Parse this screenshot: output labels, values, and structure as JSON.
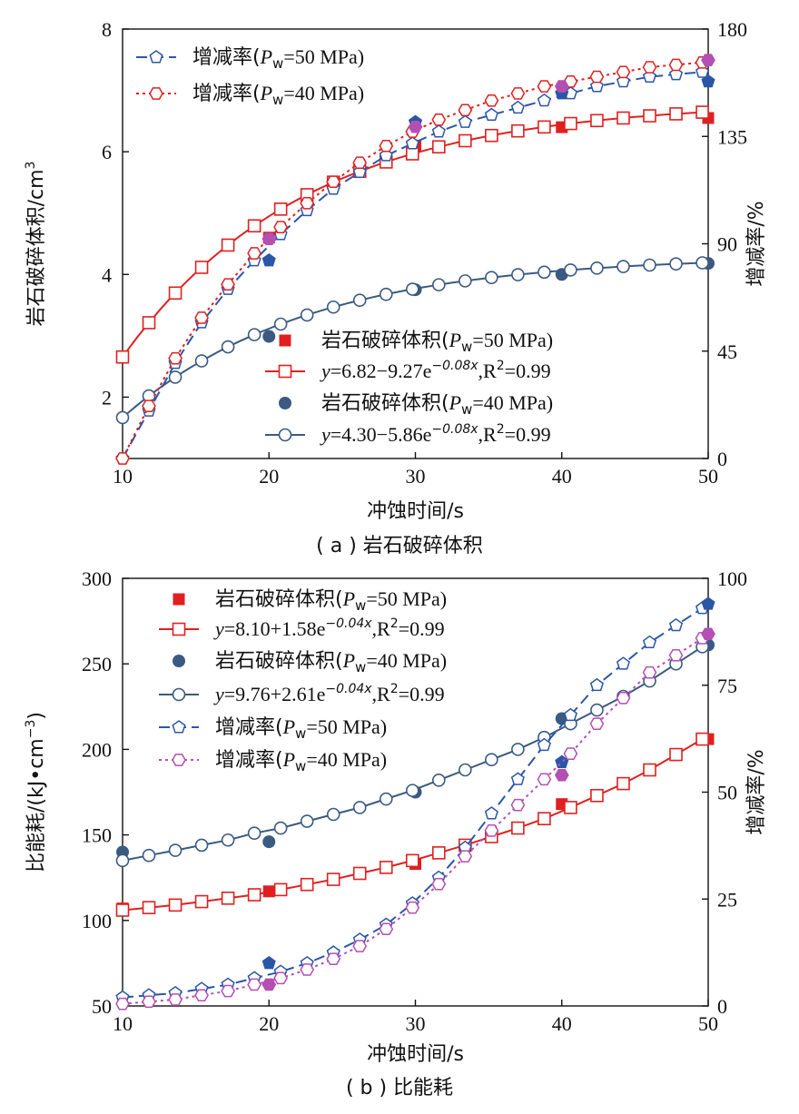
{
  "colors": {
    "red": "#e02020",
    "blue_dark": "#3a5a82",
    "blue": "#2a56a8",
    "purple": "#b44fb4"
  },
  "chart_data": [
    {
      "id": "a",
      "type": "line",
      "caption": "( a ) 岩石破碎体积",
      "xlabel": "冲蚀时间/s",
      "ylabel": "岩石破碎体积/cm",
      "ylabel_sup": "3",
      "ylabel_right": "增减率/%",
      "xlim": [
        10,
        50
      ],
      "ylim": [
        1,
        8
      ],
      "ylim_right": [
        0,
        180
      ],
      "xticks": [
        10,
        20,
        30,
        40,
        50
      ],
      "yticks": [
        2,
        4,
        6,
        8
      ],
      "yticks_right": [
        0,
        45,
        90,
        135,
        180
      ],
      "series": [
        {
          "name": "岩石破碎体积(P_w=50 MPa)",
          "kind": "points",
          "axis": "left",
          "marker": "square-filled",
          "color": "#e02020",
          "x": [
            20,
            30,
            40,
            50
          ],
          "y": [
            4.6,
            6.1,
            6.4,
            6.55
          ]
        },
        {
          "name": "y=6.82−9.27e^(−0.08x),R^2=0.99",
          "kind": "fit",
          "axis": "left",
          "marker": "square-open",
          "color": "#e02020",
          "dash": "solid",
          "formula": {
            "a": 6.82,
            "b": -9.27,
            "k": -0.08
          }
        },
        {
          "name": "岩石破碎体积(P_w=40 MPa)",
          "kind": "points",
          "axis": "left",
          "marker": "circle-filled",
          "color": "#3a5a82",
          "x": [
            20,
            30,
            40,
            50
          ],
          "y": [
            2.99,
            3.75,
            4.0,
            4.18
          ]
        },
        {
          "name": "y=4.30−5.86e^(−0.08x),R^2=0.99",
          "kind": "fit",
          "axis": "left",
          "marker": "circle-open",
          "color": "#3a5a82",
          "dash": "solid",
          "formula": {
            "a": 4.3,
            "b": -5.86,
            "k": -0.08
          }
        },
        {
          "name": "增减率(P_w=50 MPa)",
          "kind": "rate",
          "axis": "right",
          "marker": "pentagon-open",
          "color": "#2a56a8",
          "dash": "12,6",
          "x": [
            10,
            11.8,
            13.6,
            15.4,
            17.2,
            19,
            20.8,
            22.6,
            24.4,
            26.2,
            28,
            29.8,
            31.6,
            33.4,
            35.2,
            37,
            38.8,
            40.6,
            42.4,
            44.2,
            46,
            47.8,
            49.6
          ],
          "y": [
            0,
            20,
            40,
            57,
            71,
            83,
            94,
            104,
            113,
            120,
            127,
            132,
            137,
            141,
            144,
            147,
            150,
            153,
            156,
            158,
            160,
            161,
            162
          ],
          "fx": [
            20,
            30,
            40,
            50
          ],
          "fy": [
            83,
            141,
            153,
            158
          ]
        },
        {
          "name": "增减率(P_w=40 MPa)",
          "kind": "rate",
          "axis": "right",
          "marker": "hexagon-open",
          "color": "#e02020",
          "dash": "3,4",
          "x": [
            10,
            11.8,
            13.6,
            15.4,
            17.2,
            19,
            20.8,
            22.6,
            24.4,
            26.2,
            28,
            29.8,
            31.6,
            33.4,
            35.2,
            37,
            38.8,
            40.6,
            42.4,
            44.2,
            46,
            47.8,
            49.6
          ],
          "y": [
            0,
            22,
            42,
            59,
            73,
            86,
            97,
            107,
            116,
            124,
            131,
            137,
            142,
            146,
            150,
            153,
            156,
            158,
            160,
            162,
            164,
            165,
            166
          ],
          "fx": [
            20,
            30,
            40,
            50
          ],
          "fy": [
            92,
            139,
            156,
            167
          ]
        }
      ],
      "legend_top": {
        "entries": [
          {
            "label": "增减率(",
            "sym": "P",
            "sub": "w",
            "tail": "=50 MPa)"
          },
          {
            "label": "增减率(",
            "sym": "P",
            "sub": "w",
            "tail": "=40 MPa)"
          }
        ]
      },
      "legend_bottom": {
        "entries": [
          {
            "label": "岩石破碎体积(",
            "sym": "P",
            "sub": "w",
            "tail": "=50 MPa)"
          },
          {
            "label": "",
            "sym": "y",
            "sub": "",
            "tail": "=6.82−9.27e",
            "sup": "−0.08x",
            "tail2": ",R",
            "sup2": "2",
            "tail3": "=0.99"
          },
          {
            "label": "岩石破碎体积(",
            "sym": "P",
            "sub": "w",
            "tail": "=40 MPa)"
          },
          {
            "label": "",
            "sym": "y",
            "sub": "",
            "tail": "=4.30−5.86e",
            "sup": "−0.08x",
            "tail2": ",R",
            "sup2": "2",
            "tail3": "=0.99"
          }
        ]
      }
    },
    {
      "id": "b",
      "type": "line",
      "caption": "( b ) 比能耗",
      "xlabel": "冲蚀时间/s",
      "ylabel": "比能耗/(kJ•cm",
      "ylabel_sup": "−3",
      "ylabel_tail": ")",
      "ylabel_right": "增减率/%",
      "xlim": [
        10,
        50
      ],
      "ylim": [
        50,
        300
      ],
      "ylim_right": [
        0,
        100
      ],
      "xticks": [
        10,
        20,
        30,
        40,
        50
      ],
      "yticks": [
        50,
        100,
        150,
        200,
        250,
        300
      ],
      "yticks_right": [
        0,
        25,
        50,
        75,
        100
      ],
      "series": [
        {
          "name": "岩石破碎体积(P_w=50 MPa)",
          "kind": "points",
          "axis": "left",
          "marker": "square-filled",
          "color": "#e02020",
          "x": [
            10,
            20,
            30,
            40,
            50
          ],
          "y": [
            107,
            117,
            133,
            168,
            206
          ]
        },
        {
          "name": "y=8.10+1.58e^(−0.04x),R^2=0.99",
          "kind": "curve",
          "axis": "left",
          "marker": "square-open",
          "color": "#e02020",
          "dash": "solid",
          "x": [
            10,
            11.8,
            13.6,
            15.4,
            17.2,
            19,
            20.8,
            22.6,
            24.4,
            26.2,
            28,
            29.8,
            31.6,
            33.4,
            35.2,
            37,
            38.8,
            40.6,
            42.4,
            44.2,
            46,
            47.8,
            49.6
          ],
          "y": [
            106,
            107.5,
            109,
            111,
            113,
            115,
            118,
            121,
            124,
            127.5,
            131,
            135,
            139.5,
            144,
            149,
            154,
            159.5,
            166,
            173,
            180,
            188,
            197,
            206
          ]
        },
        {
          "name": "岩石破碎体积(P_w=40 MPa)",
          "kind": "points",
          "axis": "left",
          "marker": "circle-filled",
          "color": "#3a5a82",
          "x": [
            10,
            20,
            30,
            40,
            50
          ],
          "y": [
            140,
            146,
            175,
            218,
            261
          ]
        },
        {
          "name": "y=9.76+2.61e^(−0.04x),R^2=0.99",
          "kind": "curve",
          "axis": "left",
          "marker": "circle-open",
          "color": "#3a5a82",
          "dash": "solid",
          "x": [
            10,
            11.8,
            13.6,
            15.4,
            17.2,
            19,
            20.8,
            22.6,
            24.4,
            26.2,
            28,
            29.8,
            31.6,
            33.4,
            35.2,
            37,
            38.8,
            40.6,
            42.4,
            44.2,
            46,
            47.8,
            49.6
          ],
          "y": [
            135,
            138,
            141,
            144,
            147,
            151,
            154,
            158,
            162,
            166,
            171,
            176,
            182,
            188,
            194,
            200,
            207,
            215,
            223,
            231,
            240,
            250,
            260
          ]
        },
        {
          "name": "增减率(P_w=50 MPa)",
          "kind": "rate",
          "axis": "right",
          "marker": "pentagon-open",
          "color": "#2a56a8",
          "dash": "12,6",
          "x": [
            10,
            11.8,
            13.6,
            15.4,
            17.2,
            19,
            20.8,
            22.6,
            24.4,
            26.2,
            28,
            29.8,
            31.6,
            33.4,
            35.2,
            37,
            38.8,
            40.6,
            42.4,
            44.2,
            46,
            47.8,
            49.6
          ],
          "y": [
            2,
            2.5,
            3,
            4,
            5,
            6.5,
            8,
            10,
            12.5,
            15.5,
            19,
            24,
            30,
            37,
            45,
            53,
            61,
            68,
            75,
            80,
            85,
            89,
            93
          ],
          "fx": [
            20,
            40,
            50
          ],
          "fy": [
            10,
            57,
            94
          ]
        },
        {
          "name": "增减率(P_w=40 MPa)",
          "kind": "rate",
          "axis": "right",
          "marker": "hexagon-open",
          "color": "#b44fb4",
          "dash": "3,4",
          "x": [
            10,
            11.8,
            13.6,
            15.4,
            17.2,
            19,
            20.8,
            22.6,
            24.4,
            26.2,
            28,
            29.8,
            31.6,
            33.4,
            35.2,
            37,
            38.8,
            40.6,
            42.4,
            44.2,
            46,
            47.8,
            49.6
          ],
          "y": [
            0.5,
            1,
            1.5,
            2.5,
            3.5,
            5,
            6.5,
            8.5,
            11,
            14,
            18,
            23,
            28.5,
            35,
            41,
            47,
            53,
            59,
            66,
            72,
            78,
            82,
            86
          ],
          "fx": [
            20,
            40,
            50
          ],
          "fy": [
            5,
            54,
            87
          ]
        }
      ],
      "legend_top": {
        "entries": [
          {
            "label": "岩石破碎体积(",
            "sym": "P",
            "sub": "w",
            "tail": "=50 MPa)"
          },
          {
            "label": "",
            "sym": "y",
            "sub": "",
            "tail": "=8.10+1.58e",
            "sup": "−0.04x",
            "tail2": ",R",
            "sup2": "2",
            "tail3": "=0.99"
          },
          {
            "label": "岩石破碎体积(",
            "sym": "P",
            "sub": "w",
            "tail": "=40 MPa)"
          },
          {
            "label": "",
            "sym": "y",
            "sub": "",
            "tail": "=9.76+2.61e",
            "sup": "−0.04x",
            "tail2": ",R",
            "sup2": "2",
            "tail3": "=0.99"
          },
          {
            "label": "增减率(",
            "sym": "P",
            "sub": "w",
            "tail": "=50 MPa)"
          },
          {
            "label": "增减率(",
            "sym": "P",
            "sub": "w",
            "tail": "=40 MPa)"
          }
        ]
      }
    }
  ]
}
